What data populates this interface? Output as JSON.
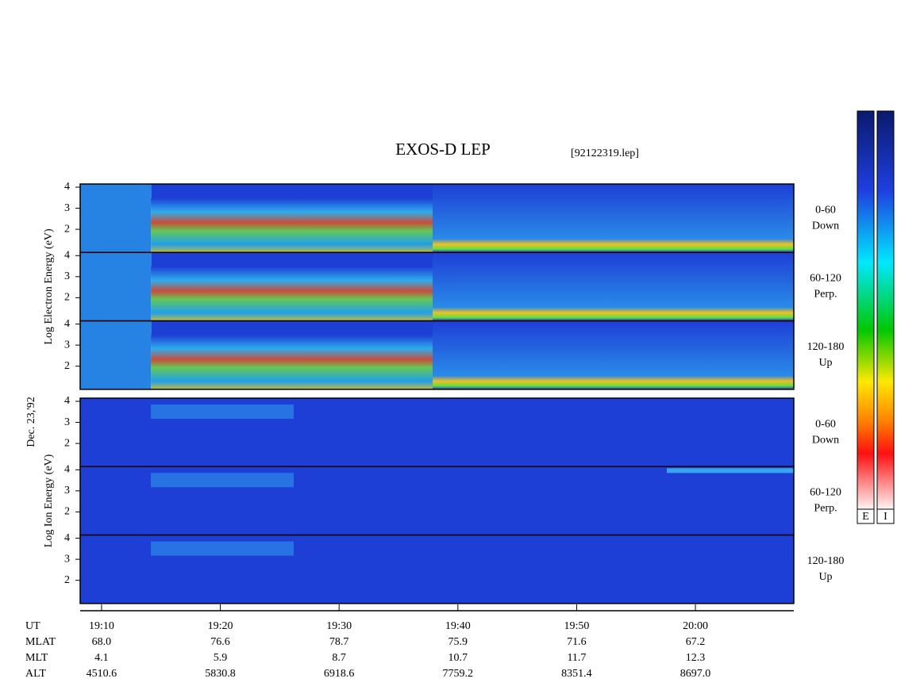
{
  "header": {
    "title": "EXOS-D LEP",
    "file": "[92122319.lep]"
  },
  "chart_data": {
    "type": "spectrogram",
    "date_label": "Dec. 23,'92",
    "xlim": [
      "19:08:12",
      "20:08:17"
    ],
    "xticks": [
      "19:10",
      "19:20",
      "19:30",
      "19:40",
      "19:50",
      "20:00"
    ],
    "x_label": "UT",
    "groups": [
      {
        "label": "Log Electron Energy (eV)",
        "panels": [
          {
            "angle": "0-60",
            "direction": "Down",
            "ylim": [
              0.9,
              4.15
            ],
            "yticks": [
              2,
              3,
              4
            ]
          },
          {
            "angle": "60-120",
            "direction": "Perp.",
            "ylim": [
              0.9,
              4.15
            ],
            "yticks": [
              2,
              3,
              4
            ]
          },
          {
            "angle": "120-180",
            "direction": "Up",
            "ylim": [
              0.9,
              4.15
            ],
            "yticks": [
              2,
              3,
              4
            ]
          }
        ]
      },
      {
        "label": "Log Ion Energy (eV)",
        "panels": [
          {
            "angle": "0-60",
            "direction": "Down",
            "ylim": [
              0.9,
              4.15
            ],
            "yticks": [
              2,
              3,
              4
            ]
          },
          {
            "angle": "60-120",
            "direction": "Perp.",
            "ylim": [
              0.9,
              4.15
            ],
            "yticks": [
              2,
              3,
              4
            ]
          },
          {
            "angle": "120-180",
            "direction": "Up",
            "ylim": [
              0.9,
              4.15
            ],
            "yticks": [
              2,
              3,
              4
            ]
          }
        ]
      }
    ],
    "orbit": [
      {
        "label": "MLAT",
        "values": [
          "68.0",
          "76.6",
          "78.7",
          "75.9",
          "71.6",
          "67.2"
        ]
      },
      {
        "label": "MLT",
        "values": [
          "4.1",
          "5.9",
          "8.7",
          "10.7",
          "11.7",
          "12.3"
        ]
      },
      {
        "label": "ALT",
        "values": [
          "4510.6",
          "5830.8",
          "6918.6",
          "7759.2",
          "8351.4",
          "8697.0"
        ]
      }
    ],
    "colorbars": [
      "E",
      "I"
    ]
  }
}
